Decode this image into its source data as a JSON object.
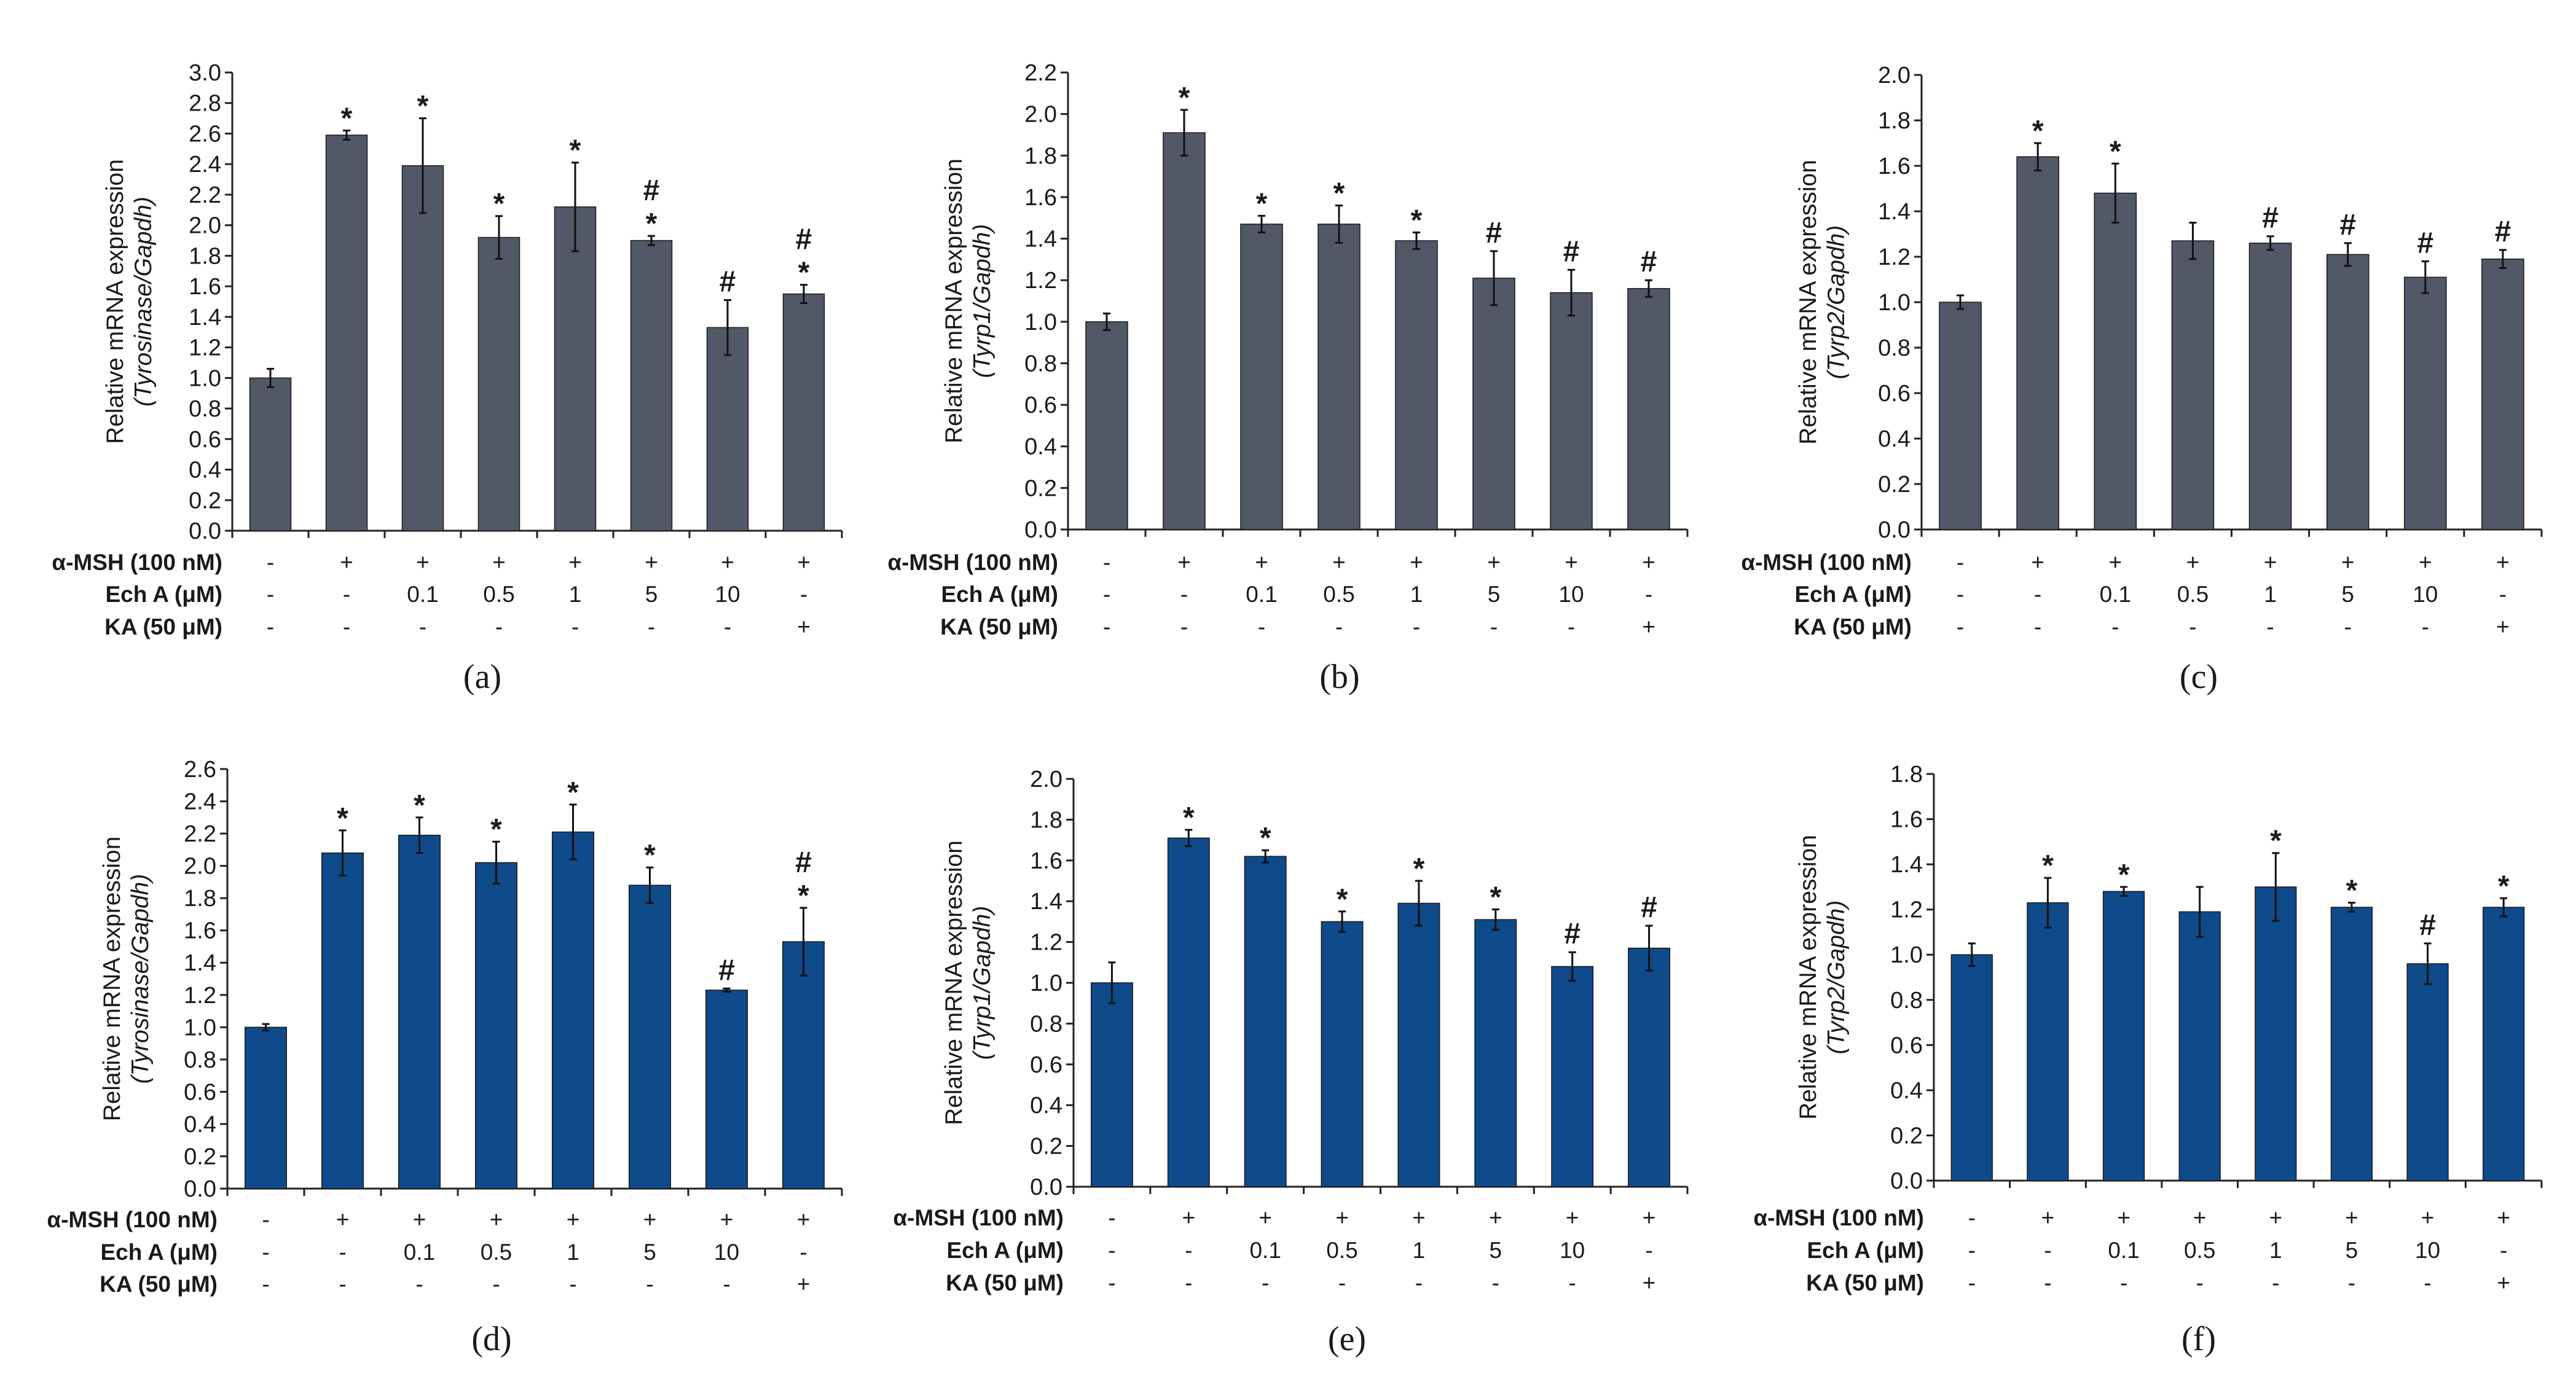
{
  "chart_data": [
    {
      "type": "bar",
      "panel_label": "(a)",
      "ylabel": "Relative mRNA expression",
      "ylabel_gene": "(Tyrosinase/Gapdh)",
      "ylim": [
        0,
        3.0
      ],
      "ystep": 0.2,
      "ytick_decimals": 1,
      "bar_color": "#535868",
      "values": [
        1.0,
        2.59,
        2.39,
        1.92,
        2.12,
        1.9,
        1.33,
        1.55
      ],
      "errors": [
        0.06,
        0.03,
        0.31,
        0.14,
        0.29,
        0.03,
        0.18,
        0.06
      ],
      "annotations": [
        "",
        "*",
        "*",
        "*",
        "*",
        "#\n*",
        "#",
        "#\n*"
      ],
      "treatments": {
        "labels": [
          "α-MSH (100 nM)",
          "Ech A (μM)",
          "KA (50 μM)"
        ],
        "rows": [
          [
            "-",
            "+",
            "+",
            "+",
            "+",
            "+",
            "+",
            "+"
          ],
          [
            "-",
            "-",
            "0.1",
            "0.5",
            "1",
            "5",
            "10",
            "-"
          ],
          [
            "-",
            "-",
            "-",
            "-",
            "-",
            "-",
            "-",
            "+"
          ]
        ]
      }
    },
    {
      "type": "bar",
      "panel_label": "(b)",
      "ylabel": "Relative mRNA expression",
      "ylabel_gene": "(Tyrp1/Gapdh)",
      "ylim": [
        0,
        2.2
      ],
      "ystep": 0.2,
      "ytick_decimals": 1,
      "bar_color": "#535868",
      "values": [
        1.0,
        1.91,
        1.47,
        1.47,
        1.39,
        1.21,
        1.14,
        1.16
      ],
      "errors": [
        0.04,
        0.11,
        0.04,
        0.09,
        0.04,
        0.13,
        0.11,
        0.04
      ],
      "annotations": [
        "",
        "*",
        "*",
        "*",
        "*",
        "#",
        "#",
        "#"
      ],
      "treatments": {
        "labels": [
          "α-MSH (100 nM)",
          "Ech A (μM)",
          "KA (50 μM)"
        ],
        "rows": [
          [
            "-",
            "+",
            "+",
            "+",
            "+",
            "+",
            "+",
            "+"
          ],
          [
            "-",
            "-",
            "0.1",
            "0.5",
            "1",
            "5",
            "10",
            "-"
          ],
          [
            "-",
            "-",
            "-",
            "-",
            "-",
            "-",
            "-",
            "+"
          ]
        ]
      }
    },
    {
      "type": "bar",
      "panel_label": "(c)",
      "ylabel": "Relative mRNA expression",
      "ylabel_gene": "(Tyrp2/Gapdh)",
      "ylim": [
        0,
        2.0
      ],
      "ystep": 0.2,
      "ytick_decimals": 1,
      "bar_color": "#535868",
      "values": [
        1.0,
        1.64,
        1.48,
        1.27,
        1.26,
        1.21,
        1.11,
        1.19
      ],
      "errors": [
        0.03,
        0.06,
        0.13,
        0.08,
        0.03,
        0.05,
        0.07,
        0.04
      ],
      "annotations": [
        "",
        "*",
        "*",
        "",
        "#",
        "#",
        "#",
        "#"
      ],
      "treatments": {
        "labels": [
          "α-MSH (100 nM)",
          "Ech A (μM)",
          "KA (50 μM)"
        ],
        "rows": [
          [
            "-",
            "+",
            "+",
            "+",
            "+",
            "+",
            "+",
            "+"
          ],
          [
            "-",
            "-",
            "0.1",
            "0.5",
            "1",
            "5",
            "10",
            "-"
          ],
          [
            "-",
            "-",
            "-",
            "-",
            "-",
            "-",
            "-",
            "+"
          ]
        ]
      }
    },
    {
      "type": "bar",
      "panel_label": "(d)",
      "ylabel": "Relative mRNA expression",
      "ylabel_gene": "(Tyrosinase/Gapdh)",
      "ylim": [
        0,
        2.6
      ],
      "ystep": 0.2,
      "ytick_decimals": 1,
      "bar_color": "#0f4a8a",
      "values": [
        1.0,
        2.08,
        2.19,
        2.02,
        2.21,
        1.88,
        1.23,
        1.53
      ],
      "errors": [
        0.02,
        0.14,
        0.11,
        0.13,
        0.17,
        0.11,
        0.01,
        0.21
      ],
      "annotations": [
        "",
        "*",
        "*",
        "*",
        "*",
        "*",
        "#",
        "#\n*"
      ],
      "treatments": {
        "labels": [
          "α-MSH (100 nM)",
          "Ech A (μM)",
          "KA (50 μM)"
        ],
        "rows": [
          [
            "-",
            "+",
            "+",
            "+",
            "+",
            "+",
            "+",
            "+"
          ],
          [
            "-",
            "-",
            "0.1",
            "0.5",
            "1",
            "5",
            "10",
            "-"
          ],
          [
            "-",
            "-",
            "-",
            "-",
            "-",
            "-",
            "-",
            "+"
          ]
        ]
      }
    },
    {
      "type": "bar",
      "panel_label": "(e)",
      "ylabel": "Relative mRNA expression",
      "ylabel_gene": "(Tyrp1/Gapdh)",
      "ylim": [
        0,
        2.0
      ],
      "ystep": 0.2,
      "ytick_decimals": 1,
      "bar_color": "#0f4a8a",
      "values": [
        1.0,
        1.71,
        1.62,
        1.3,
        1.39,
        1.31,
        1.08,
        1.17
      ],
      "errors": [
        0.1,
        0.04,
        0.03,
        0.05,
        0.11,
        0.05,
        0.07,
        0.11
      ],
      "annotations": [
        "",
        "*",
        "*",
        "*",
        "*",
        "*",
        "#",
        "#"
      ],
      "treatments": {
        "labels": [
          "α-MSH (100 nM)",
          "Ech A (μM)",
          "KA (50 μM)"
        ],
        "rows": [
          [
            "-",
            "+",
            "+",
            "+",
            "+",
            "+",
            "+",
            "+"
          ],
          [
            "-",
            "-",
            "0.1",
            "0.5",
            "1",
            "5",
            "10",
            "-"
          ],
          [
            "-",
            "-",
            "-",
            "-",
            "-",
            "-",
            "-",
            "+"
          ]
        ]
      }
    },
    {
      "type": "bar",
      "panel_label": "(f)",
      "ylabel": "Relative mRNA expression",
      "ylabel_gene": "(Tyrp2/Gapdh)",
      "ylim": [
        0,
        1.8
      ],
      "ystep": 0.2,
      "ytick_decimals": 1,
      "bar_color": "#0f4a8a",
      "values": [
        1.0,
        1.23,
        1.28,
        1.19,
        1.3,
        1.21,
        0.96,
        1.21
      ],
      "errors": [
        0.05,
        0.11,
        0.02,
        0.11,
        0.15,
        0.02,
        0.09,
        0.04
      ],
      "annotations": [
        "",
        "*",
        "*",
        "",
        "*",
        "*",
        "#",
        "*"
      ],
      "treatments": {
        "labels": [
          "α-MSH (100 nM)",
          "Ech A (μM)",
          "KA (50 μM)"
        ],
        "rows": [
          [
            "-",
            "+",
            "+",
            "+",
            "+",
            "+",
            "+",
            "+"
          ],
          [
            "-",
            "-",
            "0.1",
            "0.5",
            "1",
            "5",
            "10",
            "-"
          ],
          [
            "-",
            "-",
            "-",
            "-",
            "-",
            "-",
            "-",
            "+"
          ]
        ]
      }
    }
  ]
}
